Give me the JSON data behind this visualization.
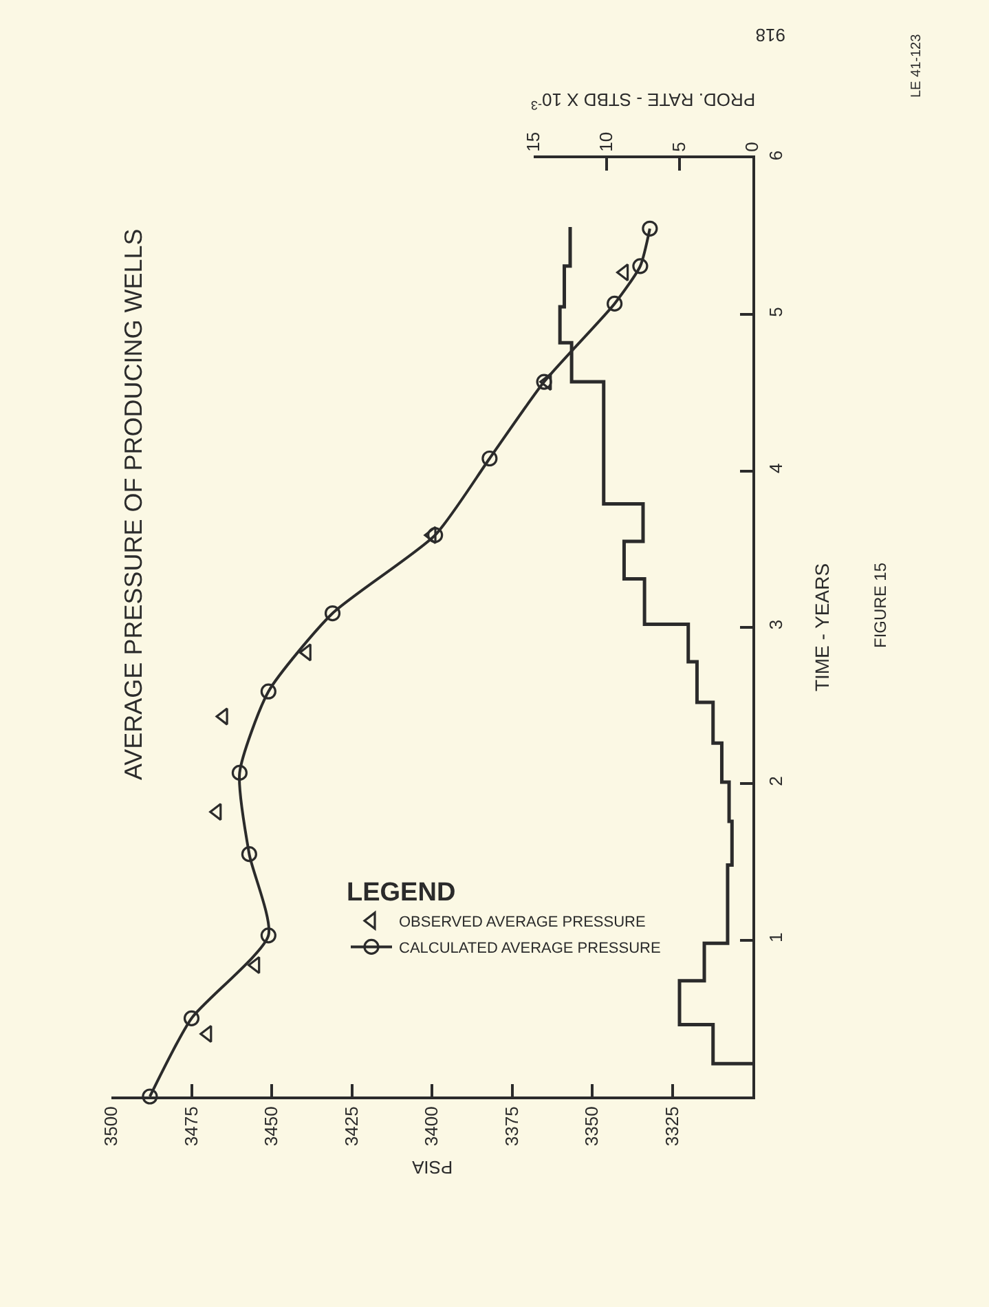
{
  "chart_data": {
    "type": "line",
    "title": "AVERAGE PRESSURE OF PRODUCING WELLS",
    "xlabel": "PSIA",
    "ylabel": "TIME - YEARS",
    "x2label": "PROD. RATE - STBD X 10$^{-3}$",
    "legend_title": "LEGEND",
    "xlim": [
      3500,
      3300
    ],
    "xticks": [
      3500,
      3475,
      3450,
      3425,
      3400,
      3375,
      3350,
      3325
    ],
    "ylim": [
      0,
      6
    ],
    "yticks": [
      1,
      2,
      3,
      4,
      5,
      6
    ],
    "x2lim": [
      15,
      0
    ],
    "x2ticks": [
      15,
      10,
      5,
      0
    ],
    "series": [
      {
        "name": "OBSERVED AVERAGE PRESSURE",
        "type": "scatter",
        "marker": "triangle",
        "color": "#2b2b2b",
        "x": [
          3470,
          3455,
          3467,
          3465,
          3439,
          3400,
          3364,
          3340
        ],
        "values": [
          0.4,
          0.84,
          1.82,
          2.43,
          2.84,
          3.59,
          4.57,
          5.27
        ]
      },
      {
        "name": "CALCULATED AVERAGE PRESSURE",
        "type": "line",
        "marker": "circle",
        "line_style": "solid",
        "color": "#2b2b2b",
        "x": [
          3488,
          3475,
          3451,
          3457,
          3460,
          3451,
          3431,
          3399,
          3382,
          3365,
          3343,
          3335,
          3332
        ],
        "values": [
          0,
          0.5,
          1.03,
          1.55,
          2.07,
          2.59,
          3.09,
          3.59,
          4.08,
          4.57,
          5.07,
          5.31,
          5.55
        ]
      },
      {
        "type": "step",
        "axis": "x2",
        "marker": "none",
        "line_style": "solid",
        "color": "#2b2b2b",
        "x": [
          0,
          2.7,
          5.0,
          3.3,
          1.7,
          1.4,
          1.6,
          2.1,
          2.7,
          3.8,
          4.4,
          7.4,
          8.8,
          7.5,
          10.2,
          12.4,
          13.2,
          12.9,
          12.5,
          12.5
        ],
        "values": [
          0.21,
          0.21,
          0.46,
          0.74,
          0.98,
          1.48,
          1.76,
          2.01,
          2.26,
          2.52,
          2.78,
          3.02,
          3.31,
          3.55,
          3.79,
          4.57,
          4.82,
          5.05,
          5.31,
          5.56
        ]
      }
    ],
    "legend": "bottom",
    "grid": false,
    "annotations": [
      "FIGURE 15",
      "LE 41-123",
      "918"
    ]
  }
}
